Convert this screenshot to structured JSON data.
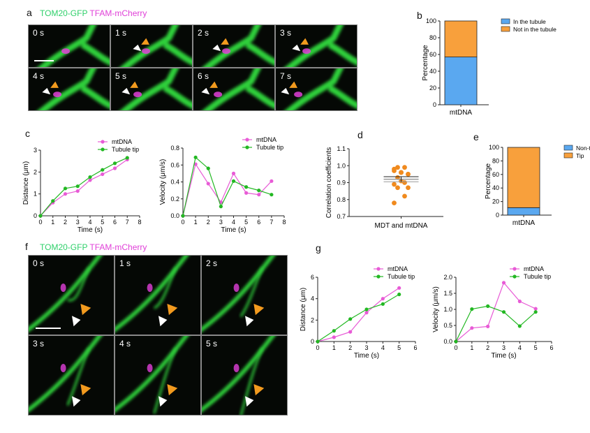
{
  "panel_labels": [
    "a",
    "b",
    "c",
    "d",
    "e",
    "f",
    "g"
  ],
  "panel_a": {
    "channels": [
      "TOM20-GFP",
      "TFAM-mCherry"
    ],
    "frames": [
      "0 s",
      "1 s",
      "2 s",
      "3 s",
      "4 s",
      "5 s",
      "6 s",
      "7 s"
    ]
  },
  "panel_f": {
    "channels": [
      "TOM20-GFP",
      "TFAM-mCherry"
    ],
    "frames": [
      "0 s",
      "1 s",
      "2 s",
      "3 s",
      "4 s",
      "5 s"
    ]
  },
  "colors": {
    "mtDNA": "#e85bd6",
    "tip": "#23b823",
    "blue": "#5aa8f0",
    "orange": "#f8a03c",
    "dot": "#f08a1e"
  },
  "chart_data": [
    {
      "id": "b",
      "type": "bar",
      "stacked": true,
      "categories": [
        "mtDNA"
      ],
      "ylabel": "Percentage",
      "ylim": [
        0,
        100
      ],
      "yticks": [
        "0",
        "20",
        "40",
        "60",
        "80",
        "100"
      ],
      "series": [
        {
          "name": "In the tubule",
          "values": [
            57
          ]
        },
        {
          "name": "Not in the tubule",
          "values": [
            43
          ]
        }
      ]
    },
    {
      "id": "c1",
      "type": "line",
      "xlabel": "Time (s)",
      "ylabel": "Distance (μm)",
      "xlim": [
        0,
        8
      ],
      "ylim": [
        0,
        3
      ],
      "xticks": [
        "0",
        "1",
        "2",
        "3",
        "4",
        "5",
        "6",
        "7",
        "8"
      ],
      "yticks": [
        "0",
        "1",
        "2",
        "3"
      ],
      "x": [
        0,
        1,
        2,
        3,
        4,
        5,
        6,
        7
      ],
      "series": [
        {
          "name": "mtDNA",
          "values": [
            0,
            0.6,
            1.0,
            1.13,
            1.63,
            1.9,
            2.17,
            2.57
          ]
        },
        {
          "name": "Tubule tip",
          "values": [
            0,
            0.68,
            1.25,
            1.35,
            1.77,
            2.1,
            2.4,
            2.65
          ]
        }
      ]
    },
    {
      "id": "c2",
      "type": "line",
      "xlabel": "Time (s)",
      "ylabel": "Velocity (μm/s)",
      "xlim": [
        0,
        8
      ],
      "ylim": [
        0,
        0.8
      ],
      "xticks": [
        "0",
        "1",
        "2",
        "3",
        "4",
        "5",
        "6",
        "7",
        "8"
      ],
      "yticks": [
        "0.0",
        "0.2",
        "0.4",
        "0.6",
        "0.8"
      ],
      "x": [
        0,
        1,
        2,
        3,
        4,
        5,
        6,
        7
      ],
      "series": [
        {
          "name": "mtDNA",
          "values": [
            0,
            0.61,
            0.38,
            0.16,
            0.5,
            0.27,
            0.25,
            0.41
          ]
        },
        {
          "name": "Tubule tip",
          "values": [
            0,
            0.69,
            0.56,
            0.11,
            0.41,
            0.34,
            0.3,
            0.25
          ]
        }
      ]
    },
    {
      "id": "d",
      "type": "scatter",
      "categories": [
        "MDT and mtDNA"
      ],
      "ylabel": "Correlation coefficients",
      "ylim": [
        0.7,
        1.1
      ],
      "yticks": [
        "0.7",
        "0.8",
        "0.9",
        "1.0",
        "1.1"
      ],
      "values": [
        0.97,
        0.96,
        0.95,
        0.99,
        0.99,
        0.98,
        0.96,
        0.95,
        0.93,
        0.9,
        0.89,
        0.91,
        0.87,
        0.87,
        0.82,
        0.78
      ],
      "mean": 0.92,
      "sem": 0.015
    },
    {
      "id": "e",
      "type": "bar",
      "stacked": true,
      "categories": [
        "mtDNA"
      ],
      "ylabel": "Percentage",
      "ylim": [
        0,
        100
      ],
      "yticks": [
        "0",
        "20",
        "40",
        "60",
        "80",
        "100"
      ],
      "series": [
        {
          "name": "Non-tip",
          "values": [
            11
          ]
        },
        {
          "name": "Tip",
          "values": [
            89
          ]
        }
      ]
    },
    {
      "id": "g1",
      "type": "line",
      "xlabel": "Time (s)",
      "ylabel": "Distance (μm)",
      "xlim": [
        0,
        6
      ],
      "ylim": [
        0,
        6
      ],
      "xticks": [
        "0",
        "1",
        "2",
        "3",
        "4",
        "5",
        "6"
      ],
      "yticks": [
        "0",
        "2",
        "4",
        "6"
      ],
      "x": [
        0,
        1,
        2,
        3,
        4,
        5
      ],
      "series": [
        {
          "name": "mtDNA",
          "values": [
            0,
            0.4,
            0.9,
            2.7,
            4.0,
            5.0
          ]
        },
        {
          "name": "Tubule tip",
          "values": [
            0,
            1.0,
            2.1,
            3.0,
            3.5,
            4.4
          ]
        }
      ]
    },
    {
      "id": "g2",
      "type": "line",
      "xlabel": "Time (s)",
      "ylabel": "Velocity (μm/s)",
      "xlim": [
        0,
        6
      ],
      "ylim": [
        0,
        2
      ],
      "xticks": [
        "0",
        "1",
        "2",
        "3",
        "4",
        "5",
        "6"
      ],
      "yticks": [
        "0.0",
        "0.5",
        "1.0",
        "1.5",
        "2.0"
      ],
      "x": [
        0,
        1,
        2,
        3,
        4,
        5
      ],
      "series": [
        {
          "name": "mtDNA",
          "values": [
            0,
            0.42,
            0.47,
            1.83,
            1.25,
            1.02
          ]
        },
        {
          "name": "Tubule tip",
          "values": [
            0,
            1.01,
            1.1,
            0.92,
            0.48,
            0.92
          ]
        }
      ]
    }
  ]
}
